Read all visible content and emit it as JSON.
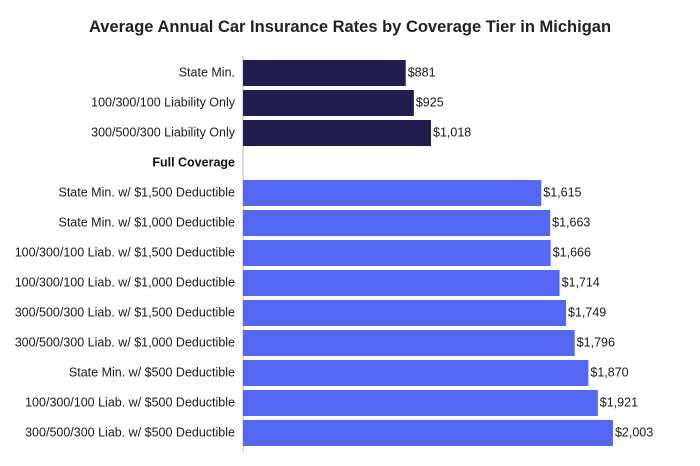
{
  "chart_data": {
    "type": "bar",
    "orientation": "horizontal",
    "title": "Average Annual Car Insurance Rates by Coverage Tier in Michigan",
    "xlabel": "",
    "ylabel": "",
    "grid": false,
    "currency_prefix": "$",
    "colors": {
      "liability": "#211d4f",
      "full_coverage": "#5468f4",
      "axis": "#bbbbbb"
    },
    "groups": [
      {
        "name": "",
        "series_key": "liability",
        "categories": [
          "State Min.",
          "100/300/100 Liability Only",
          "300/500/300 Liability Only"
        ],
        "values": [
          881,
          925,
          1018
        ],
        "value_labels": [
          "$881",
          "$925",
          "$1,018"
        ]
      },
      {
        "name": "Full Coverage",
        "series_key": "full_coverage",
        "categories": [
          "State Min. w/ $1,500 Deductible",
          "State Min. w/ $1,000 Deductible",
          "100/300/100 Liab. w/ $1,500 Deductible",
          "100/300/100 Liab. w/ $1,000 Deductible",
          "300/500/300 Liab. w/ $1,500 Deductible",
          "300/500/300 Liab. w/ $1,000 Deductible",
          "State Min. w/ $500 Deductible",
          "100/300/100 Liab. w/ $500 Deductible",
          "300/500/300 Liab. w/ $500 Deductible"
        ],
        "values": [
          1615,
          1663,
          1666,
          1714,
          1749,
          1796,
          1870,
          1921,
          2003
        ],
        "value_labels": [
          "$1,615",
          "$1,663",
          "$1,666",
          "$1,714",
          "$1,749",
          "$1,796",
          "$1,870",
          "$1,921",
          "$2,003"
        ]
      }
    ]
  }
}
